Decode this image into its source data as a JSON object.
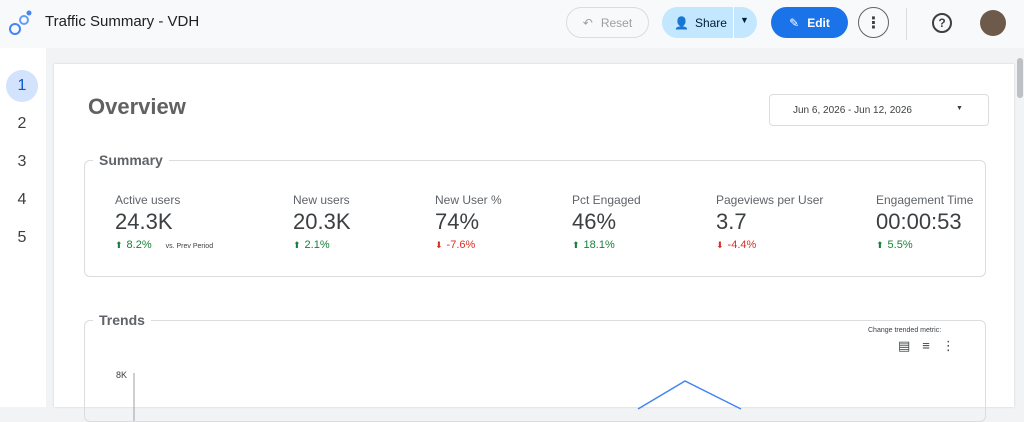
{
  "header": {
    "title": "Traffic Summary - VDH",
    "buttons": {
      "reset": "Reset",
      "share": "Share",
      "edit": "Edit"
    }
  },
  "nav": {
    "pages": [
      "1",
      "2",
      "3",
      "4",
      "5"
    ],
    "current": 0
  },
  "report": {
    "title": "Overview",
    "date_range": "Jun 6, 2026 - Jun 12, 2026"
  },
  "summary": {
    "title": "Summary",
    "comparison_note": "vs. Prev Period",
    "metrics": [
      {
        "label": "Active users",
        "value": "24.3K",
        "change": "8.2%",
        "direction": "up"
      },
      {
        "label": "New users",
        "value": "20.3K",
        "change": "2.1%",
        "direction": "up"
      },
      {
        "label": "New User %",
        "value": "74%",
        "change": "-7.6%",
        "direction": "down"
      },
      {
        "label": "Pct Engaged",
        "value": "46%",
        "change": "18.1%",
        "direction": "up"
      },
      {
        "label": "Pageviews per User",
        "value": "3.7",
        "change": "-4.4%",
        "direction": "down"
      },
      {
        "label": "Engagement Time",
        "value": "00:00:53",
        "change": "5.5%",
        "direction": "up"
      }
    ]
  },
  "trends": {
    "title": "Trends",
    "change_label": "Change trended metric:",
    "y_tick": "8K"
  }
}
